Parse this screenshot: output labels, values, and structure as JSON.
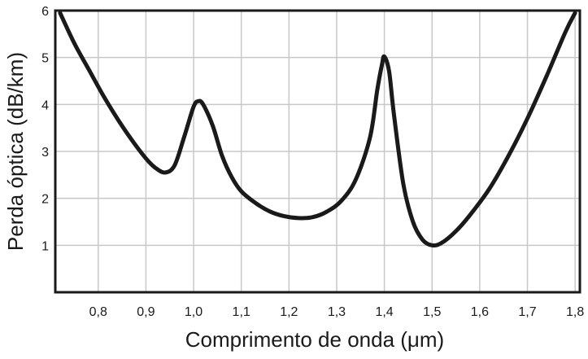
{
  "chart_data": {
    "type": "line",
    "title": "",
    "xlabel": "Comprimento de onda (μm)",
    "ylabel": "Perda óptica (dB/km)",
    "xlim": [
      0.71,
      1.81
    ],
    "ylim": [
      0,
      6
    ],
    "grid": true,
    "legend": "none",
    "x_ticks": [
      0.8,
      0.9,
      1.0,
      1.1,
      1.2,
      1.3,
      1.4,
      1.5,
      1.6,
      1.7,
      1.8
    ],
    "x_tick_labels": [
      "0,8",
      "0,9",
      "1,0",
      "1,1",
      "1,2",
      "1,3",
      "1,4",
      "1,5",
      "1,6",
      "1,7",
      "1,8"
    ],
    "y_ticks": [
      1,
      2,
      3,
      4,
      5,
      6
    ],
    "y_tick_labels": [
      "1",
      "2",
      "3",
      "4",
      "5",
      "6"
    ],
    "line_color": "#1a1a1a",
    "series": [
      {
        "x": [
          0.72,
          0.75,
          0.78,
          0.81,
          0.84,
          0.87,
          0.9,
          0.92,
          0.94,
          0.96,
          0.98,
          1.0,
          1.01,
          1.02,
          1.04,
          1.06,
          1.08,
          1.1,
          1.13,
          1.16,
          1.19,
          1.22,
          1.25,
          1.28,
          1.31,
          1.34,
          1.37,
          1.385,
          1.395,
          1.4,
          1.41,
          1.42,
          1.44,
          1.46,
          1.48,
          1.5,
          1.52,
          1.55,
          1.58,
          1.62,
          1.66,
          1.7,
          1.74,
          1.78,
          1.8
        ],
        "y": [
          5.95,
          5.3,
          4.75,
          4.2,
          3.7,
          3.25,
          2.85,
          2.65,
          2.55,
          2.7,
          3.3,
          3.95,
          4.07,
          4.0,
          3.55,
          2.9,
          2.45,
          2.15,
          1.9,
          1.72,
          1.62,
          1.58,
          1.6,
          1.72,
          1.95,
          2.4,
          3.3,
          4.3,
          4.85,
          5.02,
          4.7,
          3.8,
          2.3,
          1.5,
          1.12,
          1.0,
          1.05,
          1.3,
          1.65,
          2.2,
          2.9,
          3.7,
          4.6,
          5.55,
          5.95
        ]
      }
    ]
  }
}
